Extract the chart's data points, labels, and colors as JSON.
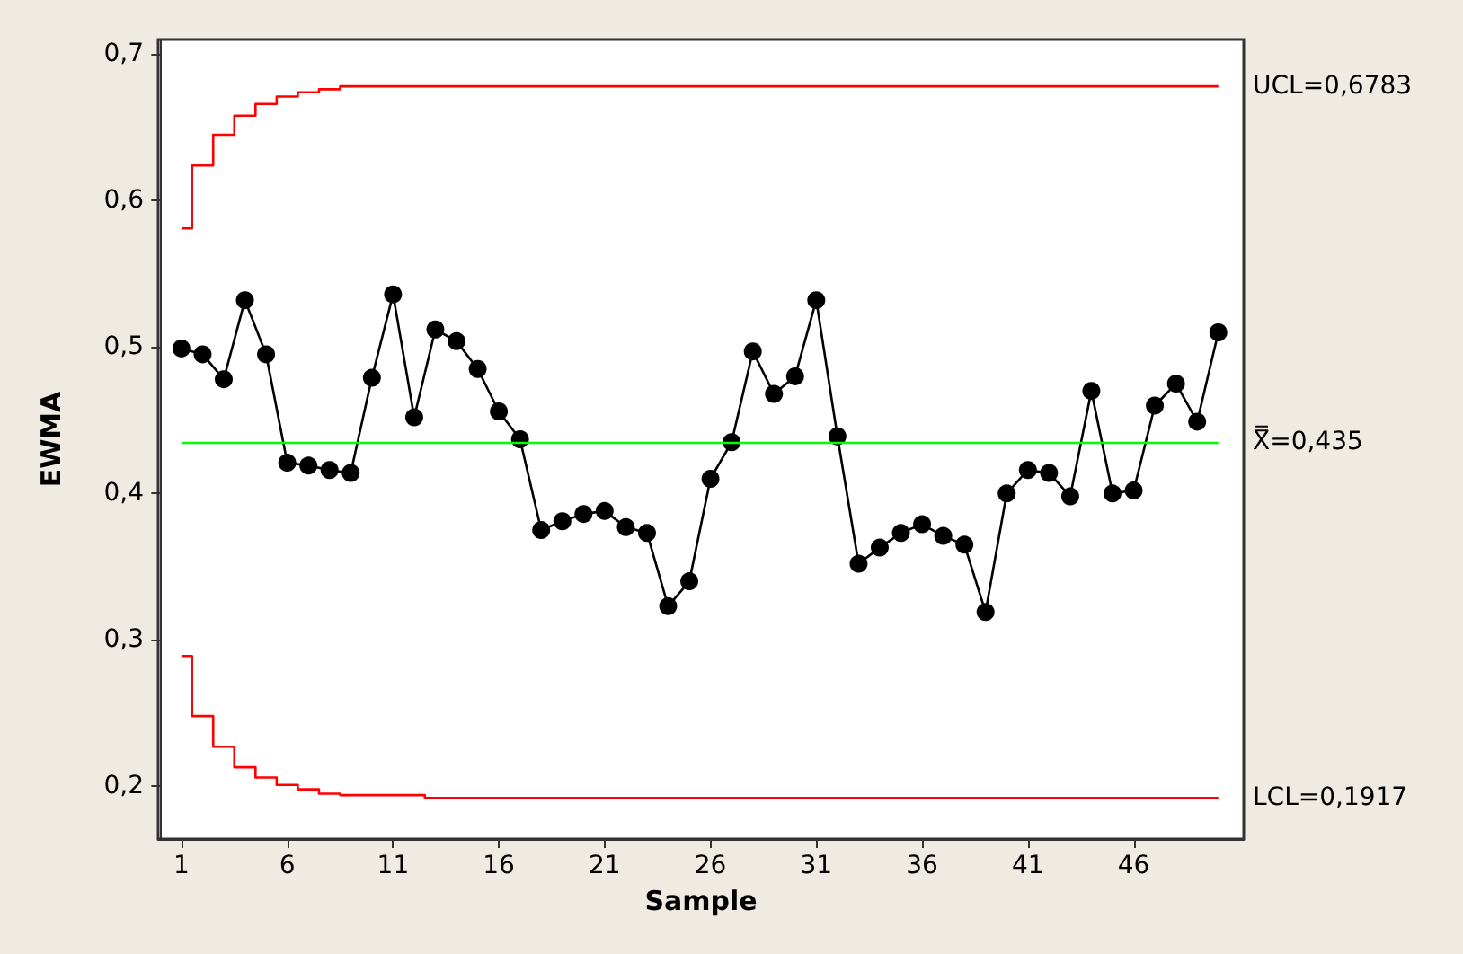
{
  "chart_data": {
    "type": "line",
    "xlabel": "Sample",
    "ylabel": "EWMA",
    "marker": "circle",
    "line_style": "solid",
    "grid": false,
    "legend": false,
    "x": [
      1,
      2,
      3,
      4,
      5,
      6,
      7,
      8,
      9,
      10,
      11,
      12,
      13,
      14,
      15,
      16,
      17,
      18,
      19,
      20,
      21,
      22,
      23,
      24,
      25,
      26,
      27,
      28,
      29,
      30,
      31,
      32,
      33,
      34,
      35,
      36,
      37,
      38,
      39,
      40,
      41,
      42,
      43,
      44,
      45,
      46,
      47,
      48,
      49,
      50
    ],
    "series": [
      {
        "color": "#000000",
        "values": [
          0.499,
          0.495,
          0.478,
          0.532,
          0.495,
          0.421,
          0.419,
          0.416,
          0.414,
          0.479,
          0.536,
          0.452,
          0.512,
          0.504,
          0.485,
          0.456,
          0.437,
          0.375,
          0.381,
          0.386,
          0.388,
          0.377,
          0.373,
          0.323,
          0.34,
          0.41,
          0.435,
          0.497,
          0.468,
          0.48,
          0.532,
          0.439,
          0.352,
          0.363,
          0.373,
          0.379,
          0.371,
          0.365,
          0.319,
          0.4,
          0.416,
          0.414,
          0.398,
          0.47,
          0.4,
          0.402,
          0.46,
          0.475,
          0.449,
          0.51
        ]
      },
      {
        "name": "UCL=0,6783",
        "type": "step",
        "marker": "none",
        "color": "#ff0000",
        "values": [
          0.581,
          0.624,
          0.645,
          0.658,
          0.666,
          0.671,
          0.674,
          0.676,
          0.678,
          0.678,
          0.678,
          0.678,
          0.678,
          0.678,
          0.678,
          0.678,
          0.678,
          0.678,
          0.678,
          0.678,
          0.678,
          0.678,
          0.678,
          0.678,
          0.678,
          0.678,
          0.678,
          0.678,
          0.678,
          0.678,
          0.678,
          0.678,
          0.678,
          0.678,
          0.678,
          0.678,
          0.678,
          0.678,
          0.678,
          0.678,
          0.678,
          0.678,
          0.678,
          0.678,
          0.678,
          0.678,
          0.678,
          0.678,
          0.678,
          0.678
        ]
      },
      {
        "name": "LCL=0,1917",
        "type": "step",
        "marker": "none",
        "color": "#ff0000",
        "values": [
          0.289,
          0.248,
          0.227,
          0.213,
          0.206,
          0.201,
          0.198,
          0.195,
          0.194,
          0.194,
          0.194,
          0.194,
          0.192,
          0.192,
          0.192,
          0.192,
          0.192,
          0.192,
          0.192,
          0.192,
          0.192,
          0.192,
          0.192,
          0.192,
          0.192,
          0.192,
          0.192,
          0.192,
          0.192,
          0.192,
          0.192,
          0.192,
          0.192,
          0.192,
          0.192,
          0.192,
          0.192,
          0.192,
          0.192,
          0.192,
          0.192,
          0.192,
          0.192,
          0.192,
          0.192,
          0.192,
          0.192,
          0.192,
          0.192,
          0.192
        ]
      }
    ],
    "ref_lines": [
      {
        "axis": "y",
        "value": 0.435,
        "label": "X̿=0,435",
        "color": "#00ff00"
      }
    ],
    "xlim": [
      -0.1,
      51.2
    ],
    "ylim": [
      0.164,
      0.71
    ],
    "xticks": [
      1,
      6,
      11,
      16,
      21,
      26,
      31,
      36,
      41,
      46
    ],
    "yticks": [
      {
        "value": 0.2,
        "label": "0,2"
      },
      {
        "value": 0.3,
        "label": "0,3"
      },
      {
        "value": 0.4,
        "label": "0,4"
      },
      {
        "value": 0.5,
        "label": "0,5"
      },
      {
        "value": 0.6,
        "label": "0,6"
      },
      {
        "value": 0.7,
        "label": "0,7"
      }
    ]
  }
}
